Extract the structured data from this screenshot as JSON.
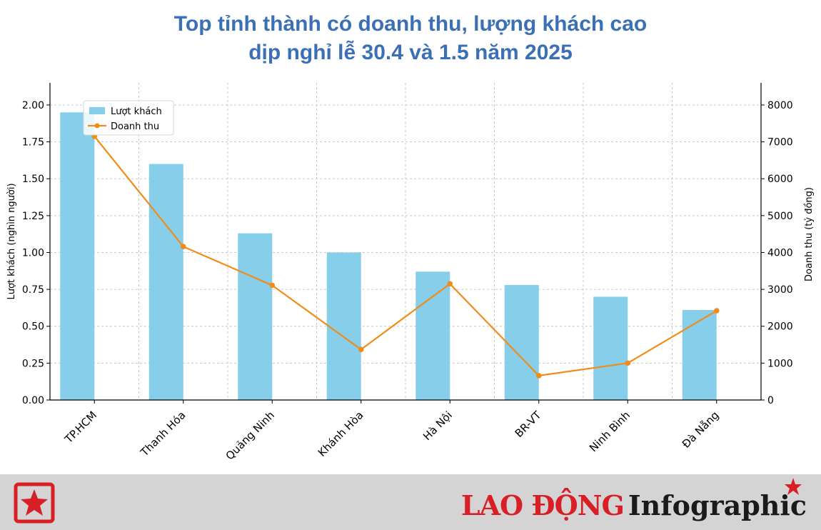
{
  "header": {
    "title_line1": "Top tỉnh thành có doanh thu, lượng khách cao",
    "title_line2": "dịp nghỉ lễ 30.4 và 1.5 năm 2025"
  },
  "chart_data": {
    "type": "bar",
    "categories": [
      "TP.HCM",
      "Thanh Hóa",
      "Quảng Ninh",
      "Khánh Hòa",
      "Hà Nội",
      "BR-VT",
      "Ninh Bình",
      "Đà Nẵng"
    ],
    "series": [
      {
        "name": "Lượt khách",
        "type": "bar",
        "axis": "left",
        "color": "#87ceeb",
        "values": [
          1.95,
          1.6,
          1.13,
          1.0,
          0.87,
          0.78,
          0.7,
          0.61
        ]
      },
      {
        "name": "Doanh thu",
        "type": "line",
        "axis": "right",
        "color": "#f28c18",
        "values": [
          7150,
          4160,
          3110,
          1370,
          3150,
          660,
          1000,
          2420
        ]
      }
    ],
    "ylabel": "Lượt khách (nghìn người)",
    "y2label": "Doanh thu (tỷ đồng)",
    "ylim": [
      0,
      2.15
    ],
    "y2lim": [
      0,
      8600
    ],
    "yticks": [
      "0.00",
      "0.25",
      "0.50",
      "0.75",
      "1.00",
      "1.25",
      "1.50",
      "1.75",
      "2.00"
    ],
    "y2ticks": [
      "0",
      "1000",
      "2000",
      "3000",
      "4000",
      "5000",
      "6000",
      "7000",
      "8000"
    ],
    "grid": true,
    "legend_position": "top-left"
  },
  "footer": {
    "brand_laodong": "LAO ĐỘNG",
    "brand_infographic": "Infographic",
    "colors": {
      "brand_red": "#d81f26",
      "footer_bg": "#d4d4d4"
    },
    "icons": [
      "star-logo-icon",
      "star-icon"
    ]
  }
}
